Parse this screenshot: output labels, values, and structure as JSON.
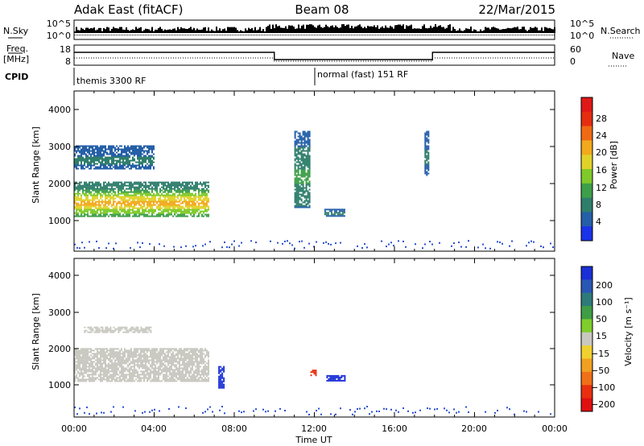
{
  "header": {
    "station": "Adak East (fitACF)",
    "beam": "Beam 08",
    "date": "22/Mar/2015"
  },
  "noise_panel": {
    "left_label": "N.Sky",
    "left_ticks": [
      "10^5",
      "10^0"
    ],
    "right_label": "N.Search",
    "right_ticks": [
      "10^5",
      "10^0"
    ]
  },
  "freq_panel": {
    "left_label_1": "Freq.",
    "left_label_2": "[MHz]",
    "left_ticks": [
      "18",
      "8"
    ],
    "right_label": "Nave",
    "right_ticks": [
      "60",
      "0"
    ]
  },
  "cpid_panel": {
    "label": "CPID",
    "modes": [
      "themis 3300 RF",
      "normal (fast) 151 RF"
    ]
  },
  "x_axis": {
    "ticks": [
      "00:00",
      "04:00",
      "08:00",
      "12:00",
      "16:00",
      "20:00",
      "00:00"
    ],
    "label": "Time UT"
  },
  "power_panel": {
    "ylabel": "Slant Range [km]",
    "yticks": [
      "1000",
      "2000",
      "3000",
      "4000"
    ],
    "cbar_label": "Power [dB]",
    "cbar_ticks": [
      "4",
      "8",
      "12",
      "16",
      "20",
      "24",
      "28"
    ],
    "cbar_colors": [
      "#1a32e8",
      "#245fa8",
      "#2f7e6c",
      "#3d9f4a",
      "#7fca2a",
      "#e0d22a",
      "#f2a91d",
      "#f06a14",
      "#e52d10",
      "#e01818"
    ]
  },
  "velocity_panel": {
    "ylabel": "Slant Range [km]",
    "yticks": [
      "1000",
      "2000",
      "3000",
      "4000"
    ],
    "cbar_label": "Velocity [m s⁻¹]",
    "cbar_ticks": [
      "200",
      "100",
      "50",
      "15",
      "−15",
      "−50",
      "−100",
      "−200"
    ],
    "cbar_colors": [
      "#1a2fd6",
      "#2a56b4",
      "#2e7a7a",
      "#3f9d45",
      "#7fce2c",
      "#c8c8c0",
      "#f0d030",
      "#f0a020",
      "#f07018",
      "#e83010",
      "#e01010"
    ]
  },
  "chart_data": {
    "type": "heatmap",
    "title": "Adak East (fitACF)  Beam 08  22/Mar/2015",
    "xlabel": "Time UT",
    "ylabel": "Slant Range [km]",
    "xlim_hours": [
      0,
      24
    ],
    "ylim_km": [
      180,
      4600
    ],
    "cpid_switch_hours": [
      10.0,
      17.9
    ],
    "nave_levels": {
      "themis": 20,
      "normal_fast": 9
    },
    "power_regions": [
      {
        "t0": 0.0,
        "t1": 6.7,
        "r0": 1150,
        "r1": 2100,
        "core_db": 22,
        "edge_db": 6
      },
      {
        "t0": 0.0,
        "t1": 4.0,
        "r0": 2450,
        "r1": 3100,
        "core_db": 6,
        "edge_db": 4
      },
      {
        "t0": 11.0,
        "t1": 11.8,
        "r0": 1400,
        "r1": 3500,
        "core_db": 10,
        "edge_db": 4
      },
      {
        "t0": 12.5,
        "t1": 13.5,
        "r0": 1150,
        "r1": 1350,
        "core_db": 6,
        "edge_db": 4
      },
      {
        "t0": 17.5,
        "t1": 17.7,
        "r0": 2300,
        "r1": 3500,
        "core_db": 6,
        "edge_db": 4
      }
    ],
    "velocity_regions": [
      {
        "t0": 0.0,
        "t1": 6.7,
        "r0": 1200,
        "r1": 2100,
        "v": 0
      },
      {
        "t0": 0.5,
        "t1": 3.8,
        "r0": 2550,
        "r1": 2700,
        "v": 0
      },
      {
        "t0": 7.2,
        "t1": 7.5,
        "r0": 1000,
        "r1": 1600,
        "v": 200
      },
      {
        "t0": 11.8,
        "t1": 12.1,
        "r0": 1350,
        "r1": 1500,
        "v": -100
      },
      {
        "t0": 12.6,
        "t1": 13.5,
        "r0": 1200,
        "r1": 1350,
        "v": 200
      }
    ]
  }
}
